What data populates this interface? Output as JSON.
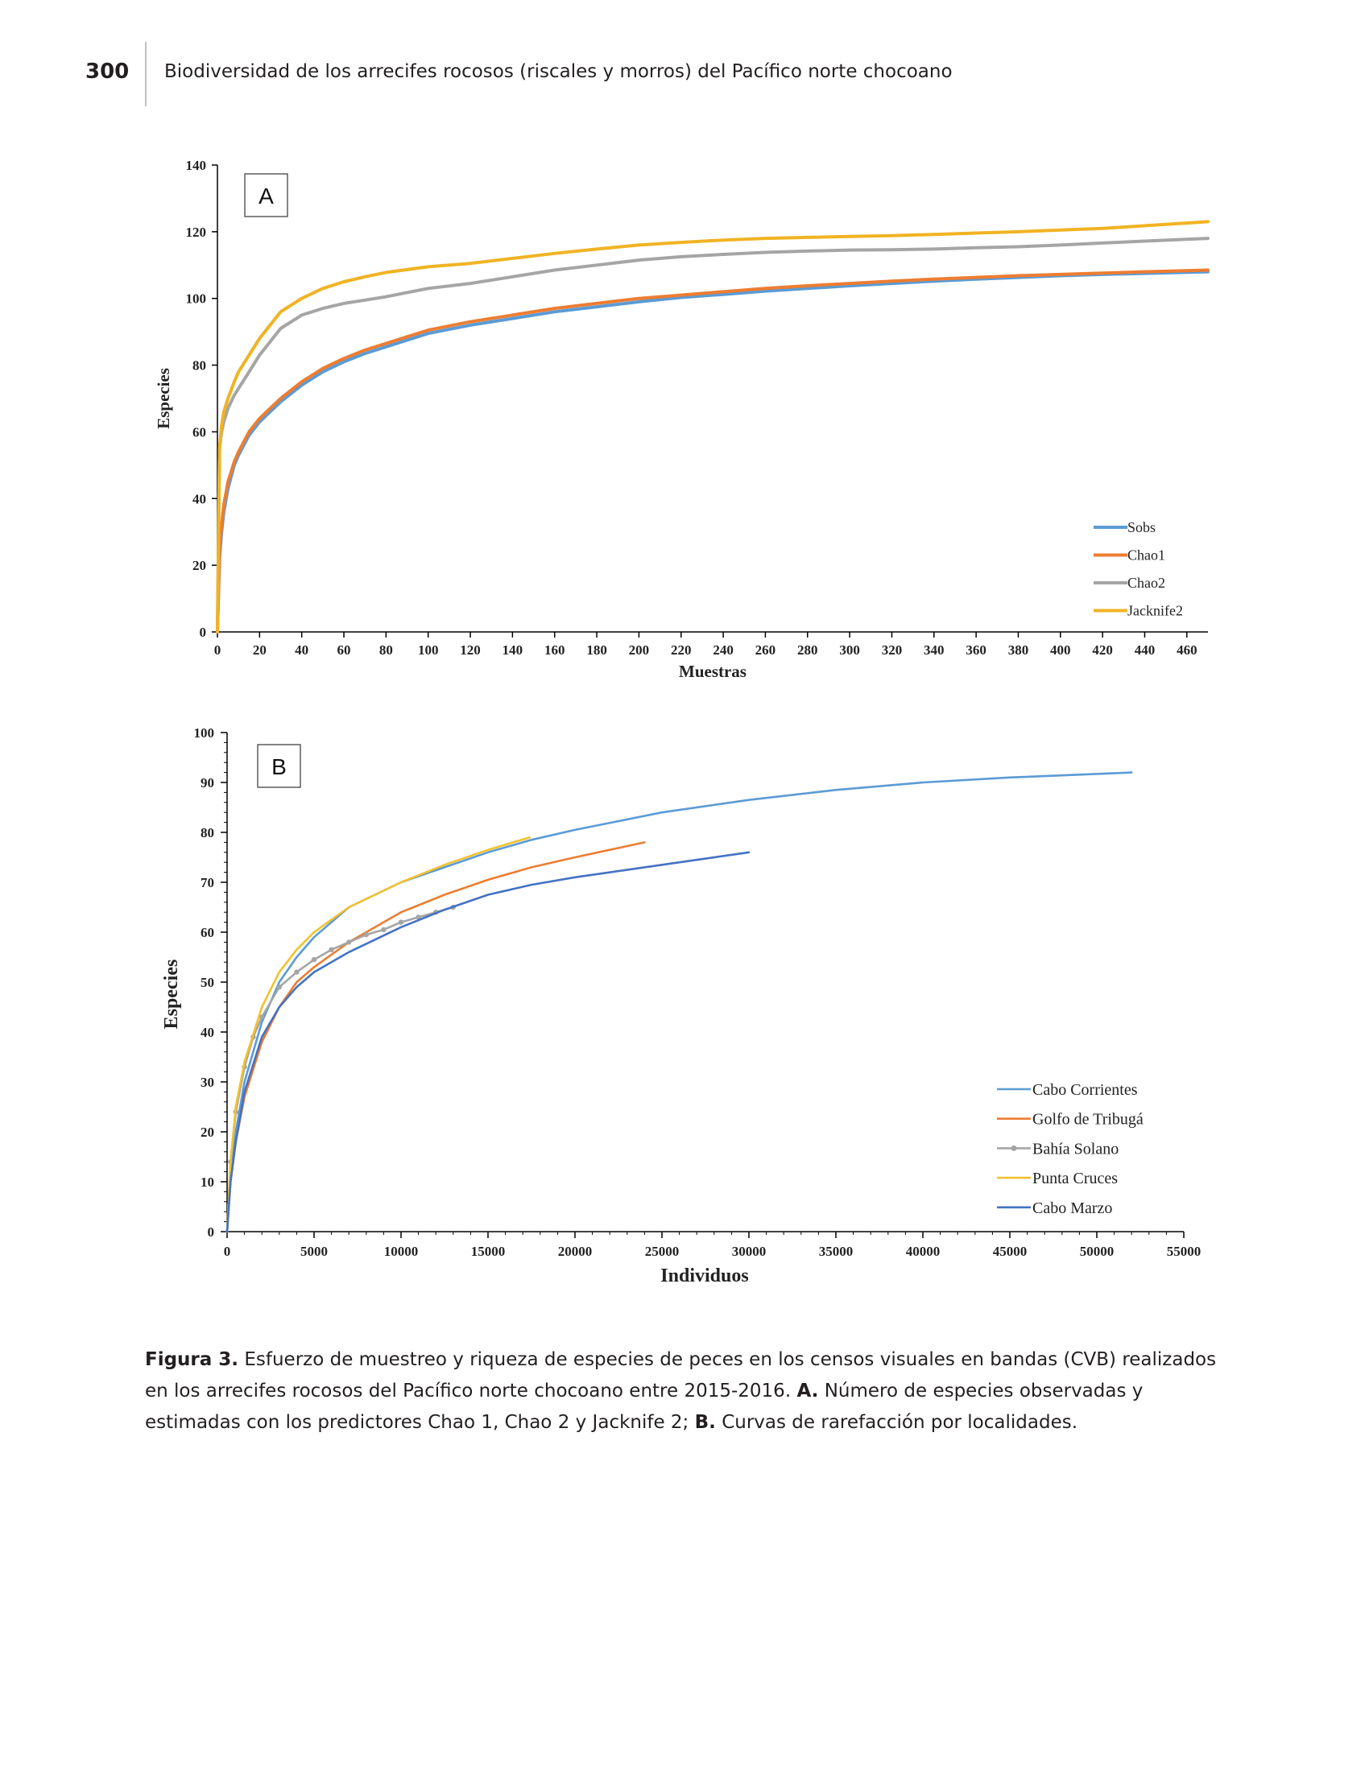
{
  "header": {
    "page_number": "300",
    "running_title": "Biodiversidad de los arrecifes rocosos (riscales y morros) del Pacífico norte chocoano"
  },
  "figures": {
    "panel_a_label": "A",
    "panel_b_label": "B"
  },
  "chart_data": [
    {
      "type": "line",
      "panel": "A",
      "title": "",
      "xlabel": "Muestras",
      "ylabel": "Especies",
      "xlim": [
        0,
        470
      ],
      "ylim": [
        0,
        140
      ],
      "xticks": [
        0,
        20,
        40,
        60,
        80,
        100,
        120,
        140,
        160,
        180,
        200,
        220,
        240,
        260,
        280,
        300,
        320,
        340,
        360,
        380,
        400,
        420,
        440,
        460
      ],
      "yticks": [
        0,
        20,
        40,
        60,
        80,
        100,
        120,
        140
      ],
      "legend_position": "bottom-right",
      "grid": false,
      "x": [
        0,
        1,
        2,
        3,
        5,
        8,
        10,
        15,
        20,
        25,
        30,
        40,
        50,
        60,
        70,
        80,
        100,
        120,
        140,
        160,
        180,
        200,
        220,
        240,
        260,
        280,
        300,
        320,
        340,
        360,
        380,
        400,
        420,
        440,
        470
      ],
      "series": [
        {
          "name": "Sobs",
          "color": "#5b9bd5",
          "values": [
            0,
            22,
            30,
            36,
            43,
            50,
            53,
            59,
            63,
            66,
            69,
            74,
            78,
            81,
            83.5,
            85.5,
            89.5,
            92,
            94,
            96,
            97.5,
            99,
            100.3,
            101.2,
            102.2,
            103,
            103.8,
            104.5,
            105.2,
            105.8,
            106.3,
            106.8,
            107.2,
            107.5,
            108
          ]
        },
        {
          "name": "Chao1",
          "color": "#ed7d31",
          "values": [
            0,
            25,
            32,
            38,
            45,
            51,
            54,
            60,
            64,
            67,
            70,
            75,
            79,
            82,
            84.5,
            86.5,
            90.5,
            93,
            95,
            97,
            98.5,
            100,
            101,
            102,
            103,
            103.8,
            104.5,
            105.2,
            105.8,
            106.3,
            106.8,
            107.2,
            107.6,
            108,
            108.5
          ]
        },
        {
          "name": "Chao2",
          "color": "#a5a5a5",
          "values": [
            0,
            55,
            60,
            63,
            67,
            71,
            73,
            78,
            83,
            87,
            91,
            95,
            97,
            98.5,
            99.5,
            100.5,
            103,
            104.5,
            106.5,
            108.5,
            110,
            111.5,
            112.5,
            113.2,
            113.8,
            114.2,
            114.5,
            114.6,
            114.8,
            115.2,
            115.5,
            116,
            116.6,
            117.2,
            118
          ]
        },
        {
          "name": "Jacknife2",
          "color": "#f0b323",
          "values": [
            0,
            55,
            62,
            66,
            70,
            75,
            78,
            83,
            88,
            92,
            96,
            100,
            103,
            105,
            106.5,
            107.8,
            109.5,
            110.5,
            112,
            113.5,
            114.8,
            116,
            116.8,
            117.5,
            118,
            118.3,
            118.6,
            118.8,
            119.2,
            119.6,
            120,
            120.5,
            121,
            121.8,
            123
          ]
        }
      ]
    },
    {
      "type": "line",
      "panel": "B",
      "title": "",
      "xlabel": "Individuos",
      "ylabel": "Especies",
      "xlim": [
        0,
        55000
      ],
      "ylim": [
        0,
        100
      ],
      "xticks": [
        0,
        5000,
        10000,
        15000,
        20000,
        25000,
        30000,
        35000,
        40000,
        45000,
        50000,
        55000
      ],
      "yticks": [
        0,
        10,
        20,
        30,
        40,
        50,
        60,
        70,
        80,
        90,
        100
      ],
      "legend_position": "bottom-right",
      "grid": false,
      "series": [
        {
          "name": "Cabo Corrientes",
          "color": "#5b9bd5",
          "x": [
            0,
            200,
            500,
            1000,
            2000,
            3000,
            4000,
            5000,
            7000,
            10000,
            12500,
            15000,
            17500,
            20000,
            25000,
            30000,
            35000,
            40000,
            45000,
            52000
          ],
          "values": [
            0,
            12,
            20,
            30,
            42,
            50,
            55,
            59,
            65,
            70,
            73,
            76,
            78.5,
            80.5,
            84,
            86.5,
            88.5,
            90,
            91,
            92
          ]
        },
        {
          "name": "Golfo de Tribugá",
          "color": "#ed7d31",
          "x": [
            0,
            200,
            500,
            1000,
            2000,
            3000,
            4000,
            5000,
            7000,
            10000,
            12500,
            15000,
            17500,
            20000,
            22000,
            24000
          ],
          "values": [
            0,
            10,
            18,
            27,
            38,
            45,
            50,
            53,
            58,
            64,
            67.5,
            70.5,
            73,
            75,
            76.5,
            78
          ]
        },
        {
          "name": "Bahía Solano",
          "color": "#a5a5a5",
          "x": [
            0,
            200,
            500,
            1000,
            1500,
            2000,
            3000,
            4000,
            5000,
            6000,
            7000,
            8000,
            9000,
            10000,
            11000,
            12000,
            13000
          ],
          "values": [
            0,
            14,
            24,
            33,
            39,
            43,
            49,
            52,
            54.5,
            56.5,
            58,
            59.5,
            60.5,
            62,
            63,
            64,
            65
          ]
        },
        {
          "name": "Punta Cruces",
          "color": "#f2c12e",
          "x": [
            0,
            200,
            500,
            1000,
            2000,
            3000,
            4000,
            5000,
            7000,
            10000,
            12500,
            15000,
            17400
          ],
          "values": [
            0,
            14,
            25,
            34,
            45,
            52,
            56.5,
            60,
            65,
            70,
            73.5,
            76.5,
            79
          ]
        },
        {
          "name": "Cabo Marzo",
          "color": "#4472c4",
          "x": [
            0,
            200,
            500,
            1000,
            2000,
            3000,
            4000,
            5000,
            7000,
            10000,
            12500,
            15000,
            17500,
            20000,
            25000,
            30000
          ],
          "values": [
            0,
            10,
            18,
            28,
            39,
            45,
            49,
            52,
            56,
            61,
            64.5,
            67.5,
            69.5,
            71,
            73.5,
            76
          ]
        }
      ]
    }
  ],
  "caption": {
    "label": "Figura 3.",
    "text_1": " Esfuerzo de muestreo y riqueza de especies de peces en los censos visuales en bandas (CVB) realizados en los arrecifes rocosos del Pacífico norte chocoano entre 2015-2016. ",
    "label_a": "A.",
    "text_2": " Número de especies observadas y estimadas con los predictores Chao 1, Chao 2 y Jacknife 2; ",
    "label_b": "B.",
    "text_3": " Curvas de rarefacción por localidades."
  }
}
